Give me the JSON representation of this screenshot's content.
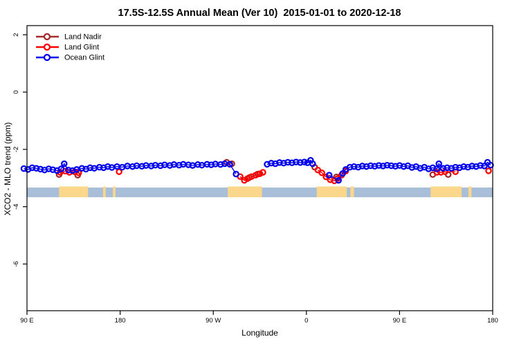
{
  "title": "17.5S-12.5S Annual Mean (Ver 10)  2015-01-01 to 2020-12-18",
  "chart_data": {
    "type": "scatter",
    "title": "17.5S-12.5S Annual Mean (Ver 10)  2015-01-01 to 2020-12-18",
    "xlabel": "Longitude",
    "ylabel": "XCO2 - MLO trend (ppm)",
    "xlim": [
      90,
      540
    ],
    "ylim": [
      -7.63,
      2.32
    ],
    "grid": false,
    "legend_position": "top-left-inside",
    "x_ticks": [
      {
        "v": 90,
        "label": "90 E"
      },
      {
        "v": 180,
        "label": "180"
      },
      {
        "v": 270,
        "label": "90 W"
      },
      {
        "v": 360,
        "label": "0"
      },
      {
        "v": 450,
        "label": "90 E"
      },
      {
        "v": 540,
        "label": "180"
      }
    ],
    "y_ticks": [
      {
        "v": 2,
        "label": "2"
      },
      {
        "v": 0,
        "label": "0"
      },
      {
        "v": -2,
        "label": "-2"
      },
      {
        "v": -4,
        "label": "-4"
      },
      {
        "v": -6,
        "label": "-6"
      }
    ],
    "map_band": {
      "y_range": [
        -3.33,
        -3.67
      ],
      "ocean_color": "#A9BED9",
      "land_color": "#FBD78C",
      "land_segments_lon": [
        [
          121,
          149
        ],
        [
          163.5,
          166
        ],
        [
          173,
          175.5
        ],
        [
          284,
          317
        ],
        [
          370,
          399
        ],
        [
          402.5,
          406
        ],
        [
          480,
          510
        ],
        [
          516.5,
          519.5
        ]
      ]
    },
    "series": [
      {
        "name": "Land Nadir",
        "color": "#A52A2A",
        "points": [
          [
            121,
            -2.88
          ],
          [
            139,
            -2.9
          ],
          [
            283,
            -2.45
          ],
          [
            288,
            -2.5
          ],
          [
            305,
            -2.98
          ],
          [
            313,
            -2.86
          ],
          [
            368,
            -2.62
          ],
          [
            389,
            -2.96
          ],
          [
            482,
            -2.88
          ],
          [
            497,
            -2.88
          ]
        ]
      },
      {
        "name": "Land Glint",
        "color": "#FF0000",
        "points": [
          [
            122,
            -2.8
          ],
          [
            127,
            -2.76
          ],
          [
            131,
            -2.8
          ],
          [
            136,
            -2.78
          ],
          [
            140,
            -2.82
          ],
          [
            179,
            -2.78
          ],
          [
            296,
            -2.95
          ],
          [
            300,
            -3.08
          ],
          [
            303,
            -3.02
          ],
          [
            307,
            -2.95
          ],
          [
            311,
            -2.9
          ],
          [
            315,
            -2.85
          ],
          [
            318,
            -2.8
          ],
          [
            371,
            -2.72
          ],
          [
            375,
            -2.82
          ],
          [
            379,
            -2.96
          ],
          [
            383,
            -3.06
          ],
          [
            387,
            -3.1
          ],
          [
            390,
            -3.02
          ],
          [
            394,
            -2.9
          ],
          [
            398,
            -2.76
          ],
          [
            486,
            -2.8
          ],
          [
            490,
            -2.8
          ],
          [
            494,
            -2.78
          ],
          [
            504,
            -2.78
          ],
          [
            536,
            -2.75
          ]
        ]
      },
      {
        "name": "Ocean Glint",
        "color": "#0000EE",
        "points": [
          [
            87,
            -2.67
          ],
          [
            91,
            -2.7
          ],
          [
            95,
            -2.64
          ],
          [
            99,
            -2.66
          ],
          [
            103,
            -2.69
          ],
          [
            107,
            -2.72
          ],
          [
            111,
            -2.68
          ],
          [
            115,
            -2.71
          ],
          [
            119,
            -2.74
          ],
          [
            123,
            -2.68
          ],
          [
            126,
            -2.5
          ],
          [
            130,
            -2.72
          ],
          [
            134,
            -2.74
          ],
          [
            138,
            -2.7
          ],
          [
            143,
            -2.66
          ],
          [
            147,
            -2.69
          ],
          [
            151,
            -2.64
          ],
          [
            155,
            -2.66
          ],
          [
            160,
            -2.62
          ],
          [
            164,
            -2.64
          ],
          [
            168,
            -2.6
          ],
          [
            172,
            -2.63
          ],
          [
            177,
            -2.6
          ],
          [
            182,
            -2.62
          ],
          [
            187,
            -2.58
          ],
          [
            192,
            -2.6
          ],
          [
            196,
            -2.57
          ],
          [
            201,
            -2.59
          ],
          [
            205,
            -2.56
          ],
          [
            210,
            -2.58
          ],
          [
            214,
            -2.55
          ],
          [
            219,
            -2.57
          ],
          [
            223,
            -2.54
          ],
          [
            228,
            -2.56
          ],
          [
            232,
            -2.53
          ],
          [
            237,
            -2.55
          ],
          [
            241,
            -2.52
          ],
          [
            246,
            -2.54
          ],
          [
            250,
            -2.56
          ],
          [
            255,
            -2.53
          ],
          [
            259,
            -2.55
          ],
          [
            264,
            -2.52
          ],
          [
            268,
            -2.54
          ],
          [
            272,
            -2.51
          ],
          [
            277,
            -2.53
          ],
          [
            281,
            -2.5
          ],
          [
            286,
            -2.52
          ],
          [
            292,
            -2.86
          ],
          [
            322,
            -2.52
          ],
          [
            326,
            -2.48
          ],
          [
            330,
            -2.5
          ],
          [
            334,
            -2.46
          ],
          [
            338,
            -2.48
          ],
          [
            342,
            -2.45
          ],
          [
            346,
            -2.47
          ],
          [
            350,
            -2.44
          ],
          [
            354,
            -2.46
          ],
          [
            358,
            -2.44
          ],
          [
            361,
            -2.47
          ],
          [
            364,
            -2.38
          ],
          [
            366,
            -2.5
          ],
          [
            382,
            -2.9
          ],
          [
            391,
            -3.08
          ],
          [
            395,
            -2.84
          ],
          [
            398,
            -2.7
          ],
          [
            402,
            -2.62
          ],
          [
            406,
            -2.6
          ],
          [
            410,
            -2.62
          ],
          [
            414,
            -2.58
          ],
          [
            418,
            -2.6
          ],
          [
            422,
            -2.57
          ],
          [
            426,
            -2.59
          ],
          [
            430,
            -2.56
          ],
          [
            434,
            -2.58
          ],
          [
            438,
            -2.55
          ],
          [
            442,
            -2.57
          ],
          [
            446,
            -2.59
          ],
          [
            450,
            -2.56
          ],
          [
            454,
            -2.6
          ],
          [
            458,
            -2.57
          ],
          [
            462,
            -2.63
          ],
          [
            466,
            -2.6
          ],
          [
            470,
            -2.66
          ],
          [
            474,
            -2.62
          ],
          [
            478,
            -2.68
          ],
          [
            482,
            -2.64
          ],
          [
            486,
            -2.68
          ],
          [
            488,
            -2.5
          ],
          [
            492,
            -2.66
          ],
          [
            496,
            -2.64
          ],
          [
            500,
            -2.66
          ],
          [
            504,
            -2.62
          ],
          [
            508,
            -2.64
          ],
          [
            512,
            -2.6
          ],
          [
            516,
            -2.62
          ],
          [
            520,
            -2.58
          ],
          [
            524,
            -2.6
          ],
          [
            528,
            -2.56
          ],
          [
            532,
            -2.58
          ],
          [
            535,
            -2.45
          ],
          [
            538,
            -2.55
          ]
        ]
      }
    ]
  },
  "legend": {
    "items": [
      {
        "label": "Land Nadir",
        "color": "#A52A2A"
      },
      {
        "label": "Land Glint",
        "color": "#FF0000"
      },
      {
        "label": "Ocean Glint",
        "color": "#0000EE"
      }
    ]
  }
}
